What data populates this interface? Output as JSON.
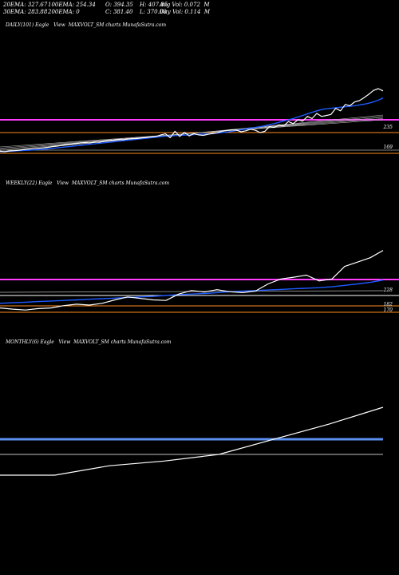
{
  "header": {
    "ema20": "20EMA: 327.67",
    "ema100": "100EMA: 254.34",
    "open": "O: 394.35",
    "high": "H: 407.85",
    "avgvol": "Avg Vol: 0.072  M",
    "ema30": "30EMA: 283.88",
    "ema200": "200EMA: 0",
    "close": "C: 381.40",
    "low": "L: 370.00",
    "dayvol": "Day Vol: 0.114  M"
  },
  "chart_data": [
    {
      "type": "line",
      "title": "DAILY(101) Eagle   View  MAXVOLT_SM charts MunafaSutra.com",
      "levels": [
        "235",
        "169"
      ],
      "colors": {
        "price": "#ffffff",
        "ema": "#1e5bff",
        "magenta": "#ff3cff",
        "orange": "#ff8c1a"
      },
      "series": [
        {
          "values": [
            162,
            160,
            163,
            164,
            166,
            168,
            170,
            172,
            173,
            175,
            177,
            180,
            182,
            185,
            188,
            190,
            192,
            195,
            196,
            194,
            198,
            197,
            201,
            203,
            205,
            208,
            207,
            210,
            211,
            212,
            214,
            216,
            218,
            220,
            226,
            230,
            215,
            240,
            220,
            236,
            222,
            231,
            226,
            224,
            228,
            232,
            235,
            240,
            243,
            246,
            244,
            238,
            242,
            248,
            244,
            235,
            240,
            258,
            255,
            265,
            262,
            278,
            270,
            285,
            280,
            298,
            290,
            310,
            298,
            302,
            306,
            330,
            320,
            345,
            340,
            355,
            360,
            372,
            385,
            400,
            407,
            398
          ]
        },
        {
          "values": [
            160,
            161,
            162,
            163,
            164,
            165,
            166,
            167,
            168,
            170,
            171,
            173,
            175,
            177,
            179,
            181,
            183,
            185,
            187,
            189,
            191,
            193,
            195,
            197,
            199,
            201,
            203,
            205,
            207,
            209,
            211,
            213,
            215,
            217,
            219,
            221,
            222,
            223,
            224,
            225,
            226,
            227,
            228,
            229,
            230,
            231,
            233,
            235,
            237,
            240,
            243,
            246,
            249,
            252,
            255,
            258,
            262,
            266,
            270,
            275,
            280,
            285,
            290,
            296,
            302,
            308,
            314,
            320,
            325,
            328,
            330,
            332,
            334,
            336,
            338,
            340,
            343,
            346,
            350,
            355,
            362,
            370
          ]
        }
      ]
    },
    {
      "type": "line",
      "title": "WEEKLY(22) Eagle   View  MAXVOLT_SM charts MunafaSutra.com",
      "levels": [
        "228",
        "182",
        "170"
      ],
      "series": [
        {
          "values": [
            162,
            158,
            155,
            160,
            162,
            170,
            175,
            172,
            178,
            190,
            200,
            195,
            190,
            188,
            210,
            222,
            217,
            225,
            218,
            215,
            220,
            245,
            262,
            268,
            275,
            255,
            262,
            305,
            320,
            335,
            360
          ]
        },
        {
          "values": [
            178,
            180,
            182,
            184,
            186,
            188,
            190,
            192,
            194,
            196,
            198,
            200,
            202,
            205,
            208,
            210,
            212,
            215,
            218,
            220,
            222,
            224,
            226,
            228,
            230,
            232,
            235,
            240,
            245,
            250,
            258
          ]
        }
      ]
    },
    {
      "type": "line",
      "title": "MONTHLY(6) Eagle   View  MAXVOLT_SM charts MunafaSutra.com",
      "levels": [],
      "series": [
        {
          "values": [
            100,
            100,
            150,
            175,
            210,
            290,
            370,
            460
          ]
        }
      ]
    }
  ]
}
